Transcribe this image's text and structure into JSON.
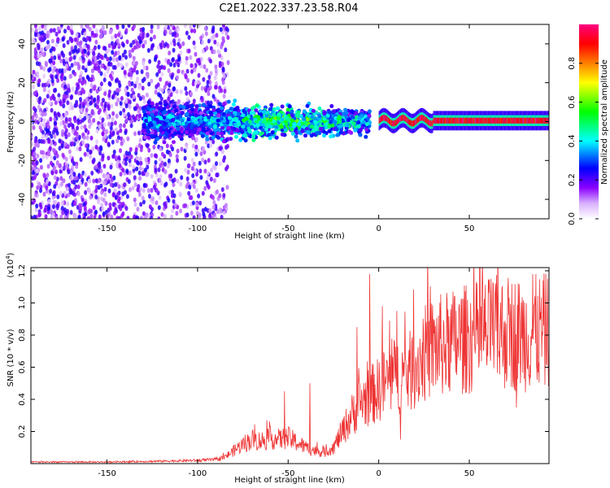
{
  "title": "C2E1.2022.337.23.58.R04",
  "chart_data": [
    {
      "type": "heatmap",
      "xlabel": "Height of straight line (km)",
      "ylabel": "Frequency (Hz)",
      "xlim": [
        -192,
        94
      ],
      "ylim": [
        -50,
        50
      ],
      "x_ticks": [
        -150,
        -100,
        -50,
        0,
        50
      ],
      "y_ticks": [
        -40,
        -20,
        0,
        20,
        40
      ],
      "colorbar": {
        "label": "Normalized spectral amplitude",
        "range": [
          0.0,
          1.0
        ],
        "ticks": [
          0.0,
          0.2,
          0.4,
          0.6,
          0.8
        ],
        "colors": [
          "#ffffff",
          "#8a00ff",
          "#0000ff",
          "#00ffff",
          "#00ff00",
          "#ffff00",
          "#ff8000",
          "#ff0000",
          "#ff0080"
        ]
      },
      "structure": [
        {
          "region": "broadband noise",
          "x_range": [
            -192,
            -83
          ],
          "y_range": [
            -50,
            50
          ],
          "amplitude_range": [
            0.05,
            0.25
          ]
        },
        {
          "region": "signal band forming",
          "x_range": [
            -130,
            -5
          ],
          "center_frequency": 0,
          "half_width": [
            8,
            5
          ],
          "amplitude_range": [
            0.2,
            0.55
          ]
        },
        {
          "region": "narrow carrier",
          "x_range": [
            0,
            94
          ],
          "center_frequency": 0.5,
          "half_width": 1.5,
          "amplitude_range": [
            0.85,
            1.0
          ]
        }
      ]
    },
    {
      "type": "line",
      "xlabel": "Height of straight line (km)",
      "ylabel": "SNR (10 * v/v)",
      "y_scale_label": "(x10",
      "y_scale_exponent": "4",
      "y_scale_suffix": ")",
      "xlim": [
        -192,
        94
      ],
      "ylim": [
        0,
        1.22
      ],
      "x_ticks": [
        -150,
        -100,
        -50,
        0,
        50
      ],
      "y_ticks": [
        0.2,
        0.4,
        0.6,
        0.8,
        1.0,
        1.2
      ],
      "series": [
        {
          "color": "#ee3333",
          "x": [
            -192,
            -150,
            -120,
            -100,
            -90,
            -85,
            -80,
            -75,
            -70,
            -65,
            -60,
            -55,
            -50,
            -45,
            -40,
            -35,
            -30,
            -25,
            -20,
            -15,
            -10,
            -5,
            0,
            5,
            10,
            15,
            20,
            25,
            30,
            40,
            50,
            60,
            70,
            80,
            90,
            94
          ],
          "mean": [
            0.01,
            0.01,
            0.015,
            0.02,
            0.025,
            0.04,
            0.08,
            0.12,
            0.15,
            0.14,
            0.16,
            0.15,
            0.16,
            0.13,
            0.1,
            0.08,
            0.07,
            0.1,
            0.2,
            0.3,
            0.38,
            0.42,
            0.46,
            0.52,
            0.55,
            0.55,
            0.6,
            0.68,
            0.72,
            0.75,
            0.78,
            0.8,
            0.82,
            0.8,
            0.82,
            0.82
          ],
          "peaks": [
            [
              -5,
              1.18
            ],
            [
              2,
              0.98
            ],
            [
              10,
              0.95
            ],
            [
              -12,
              0.85
            ],
            [
              85,
              1.18
            ],
            [
              62,
              1.15
            ],
            [
              57,
              1.02
            ],
            [
              -52,
              0.45
            ],
            [
              -38,
              0.5
            ],
            [
              12,
              0.15
            ],
            [
              76,
              0.35
            ]
          ]
        }
      ]
    }
  ]
}
